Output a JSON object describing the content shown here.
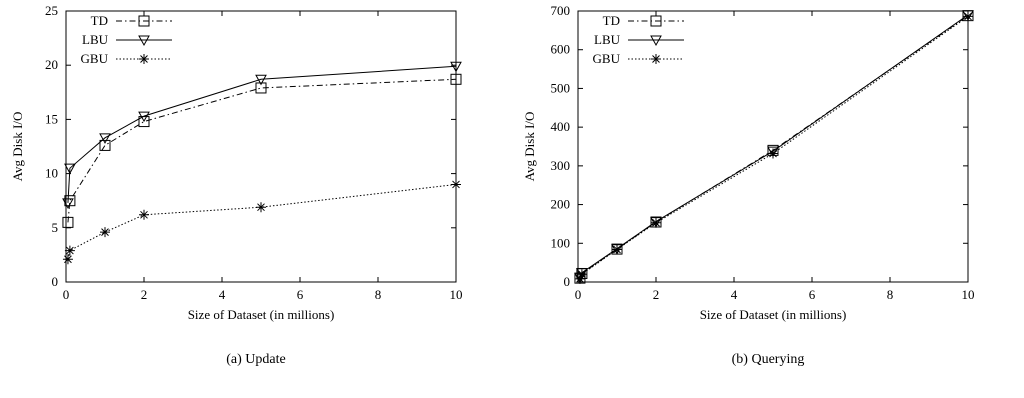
{
  "chart_data": [
    {
      "type": "line",
      "title": "",
      "caption": "(a) Update",
      "xlabel": "Size of Dataset (in millions)",
      "ylabel": "Avg Disk I/O",
      "xlim": [
        0,
        10
      ],
      "ylim": [
        0,
        25
      ],
      "xticks": [
        0,
        2,
        4,
        6,
        8,
        10
      ],
      "yticks": [
        0,
        5,
        10,
        15,
        20,
        25
      ],
      "grid": false,
      "legend_position": "top-left",
      "series": [
        {
          "name": "TD",
          "marker": "square",
          "line": "dashdot",
          "x": [
            0.05,
            0.1,
            1,
            2,
            5,
            10
          ],
          "y": [
            5.5,
            7.5,
            12.6,
            14.8,
            17.9,
            18.7
          ]
        },
        {
          "name": "LBU",
          "marker": "triangle",
          "line": "solid",
          "x": [
            0.05,
            0.1,
            1,
            2,
            5,
            10
          ],
          "y": [
            7.3,
            10.5,
            13.3,
            15.3,
            18.7,
            19.9
          ]
        },
        {
          "name": "GBU",
          "marker": "star",
          "line": "dotted",
          "x": [
            0.05,
            0.1,
            1,
            2,
            5,
            10
          ],
          "y": [
            2.1,
            2.9,
            4.6,
            6.2,
            6.9,
            9.0
          ]
        }
      ]
    },
    {
      "type": "line",
      "title": "",
      "caption": "(b) Querying",
      "xlabel": "Size of Dataset (in millions)",
      "ylabel": "Avg Disk I/O",
      "xlim": [
        0,
        10
      ],
      "ylim": [
        0,
        700
      ],
      "xticks": [
        0,
        2,
        4,
        6,
        8,
        10
      ],
      "yticks": [
        0,
        100,
        200,
        300,
        400,
        500,
        600,
        700
      ],
      "grid": false,
      "legend_position": "top-left",
      "series": [
        {
          "name": "TD",
          "marker": "square",
          "line": "dashdot",
          "x": [
            0.05,
            0.1,
            1,
            2,
            5,
            10
          ],
          "y": [
            10,
            22,
            85,
            155,
            340,
            688
          ]
        },
        {
          "name": "LBU",
          "marker": "triangle",
          "line": "solid",
          "x": [
            0.05,
            0.1,
            1,
            2,
            5,
            10
          ],
          "y": [
            12,
            24,
            86,
            156,
            338,
            690
          ]
        },
        {
          "name": "GBU",
          "marker": "star",
          "line": "dotted",
          "x": [
            0.05,
            0.1,
            1,
            2,
            5,
            10
          ],
          "y": [
            8,
            20,
            84,
            153,
            332,
            686
          ]
        }
      ]
    }
  ]
}
